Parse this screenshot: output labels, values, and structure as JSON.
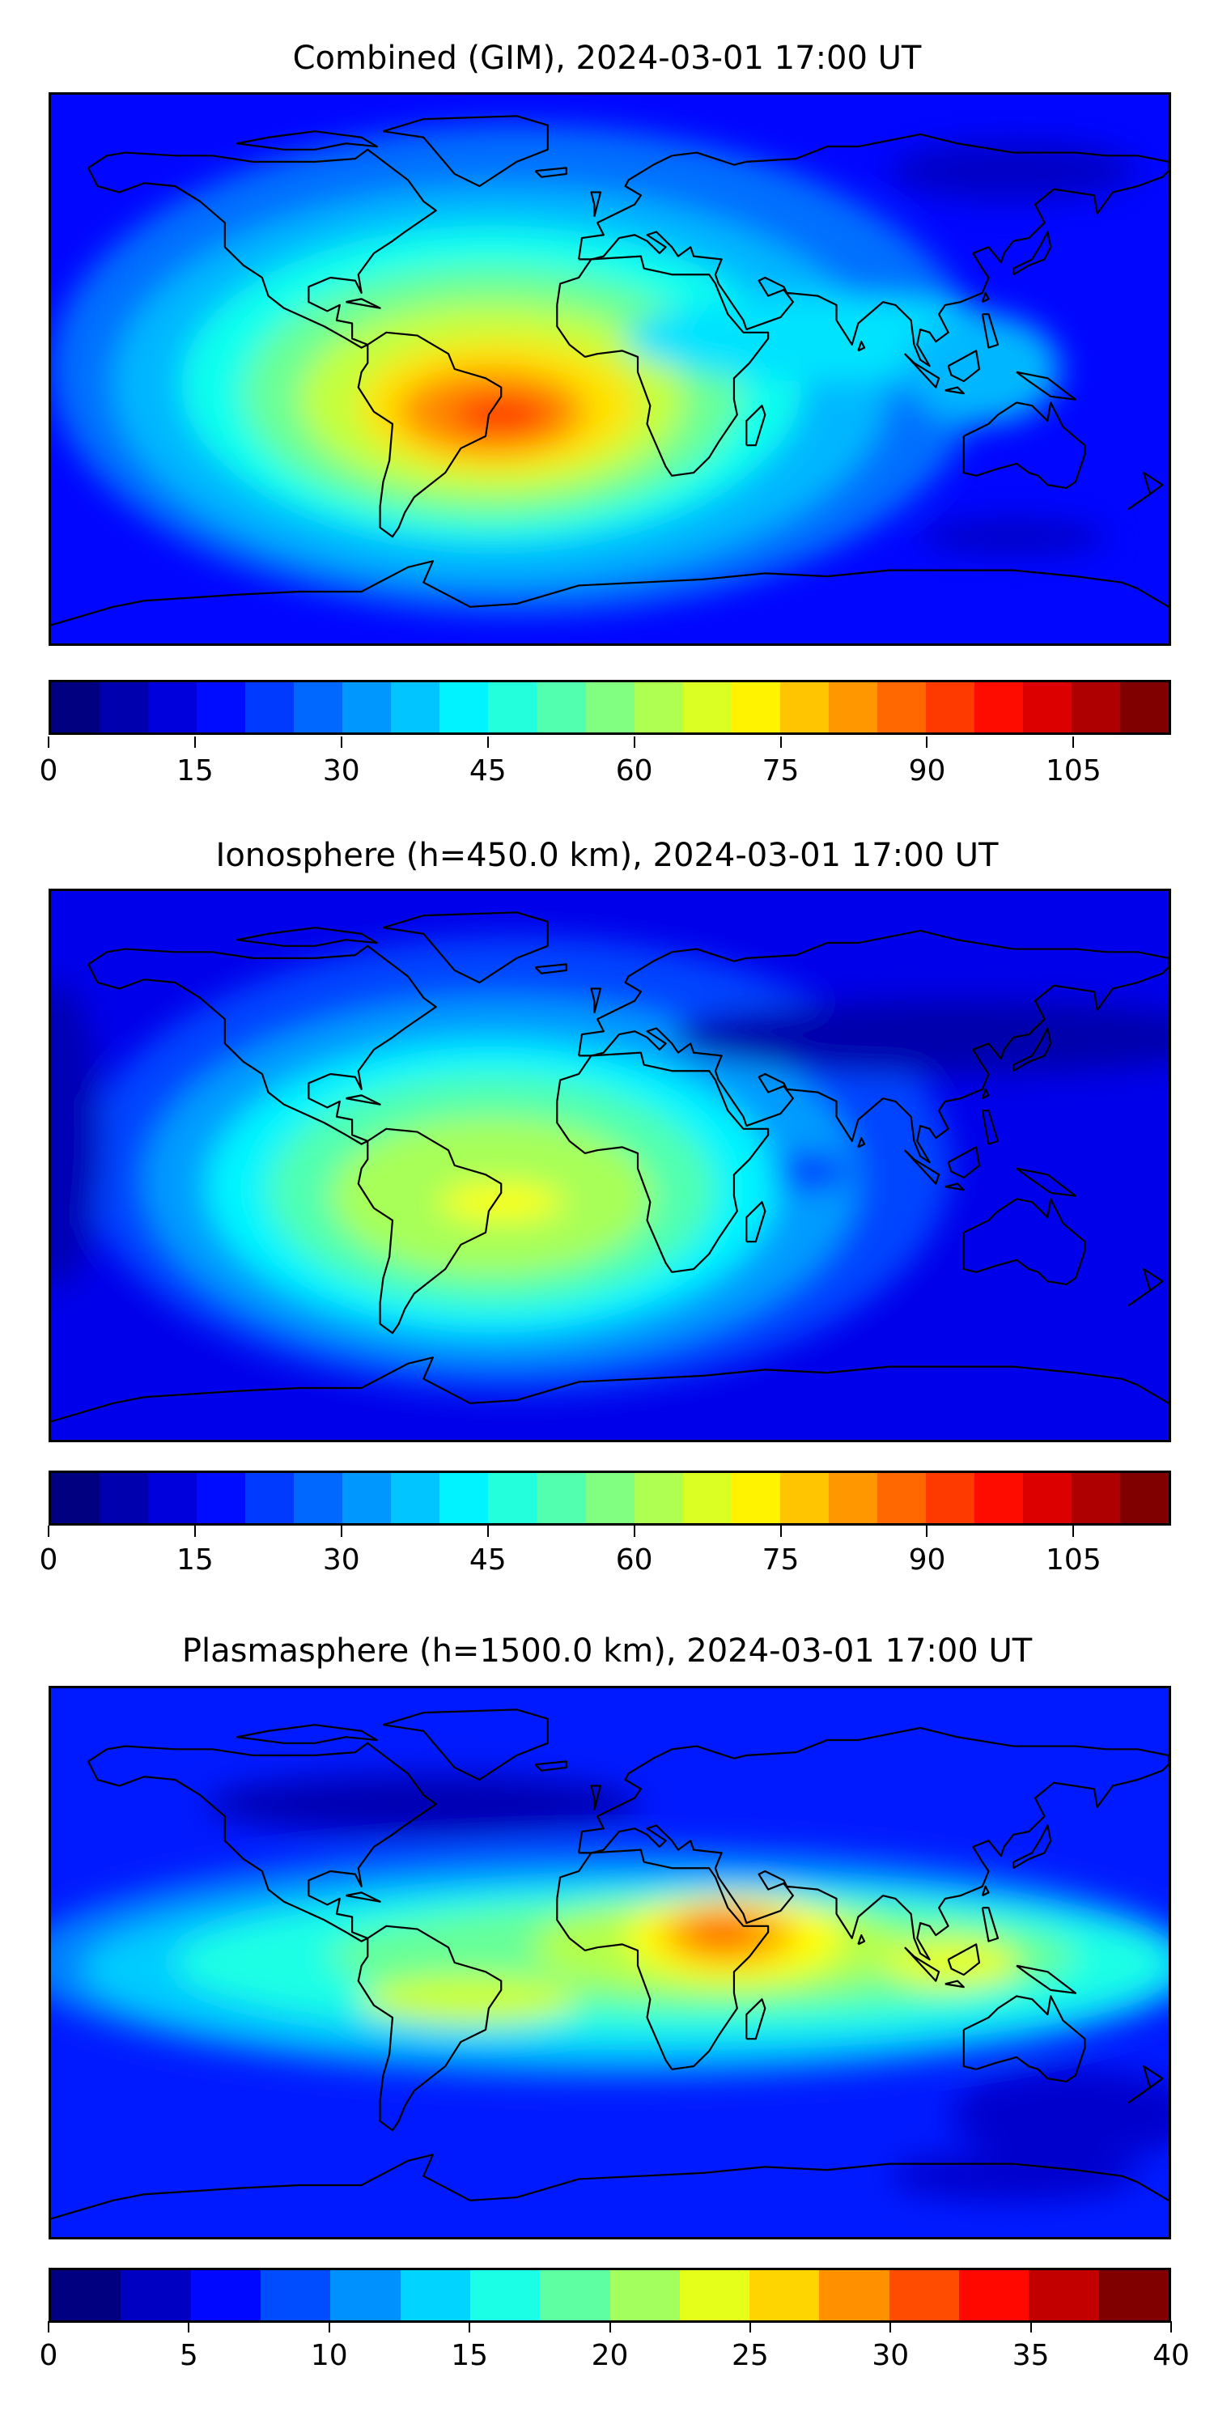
{
  "panels": [
    {
      "title": "Combined (GIM), 2024-03-01 17:00 UT",
      "colormap": "jet",
      "levels_min": 0,
      "levels_max": 115,
      "levels_step": 5,
      "ticks": [
        "0",
        "15",
        "30",
        "45",
        "60",
        "75",
        "90",
        "105"
      ],
      "tick_values": [
        0,
        15,
        30,
        45,
        60,
        75,
        90,
        105
      ]
    },
    {
      "title": "Ionosphere  (h=450.0 km), 2024-03-01 17:00 UT",
      "colormap": "jet",
      "levels_min": 0,
      "levels_max": 115,
      "levels_step": 5,
      "ticks": [
        "0",
        "15",
        "30",
        "45",
        "60",
        "75",
        "90",
        "105"
      ],
      "tick_values": [
        0,
        15,
        30,
        45,
        60,
        75,
        90,
        105
      ]
    },
    {
      "title": "Plasmasphere (h=1500.0 km), 2024-03-01 17:00 UT",
      "colormap": "jet",
      "levels_min": 0,
      "levels_max": 40,
      "levels_step": 2.5,
      "ticks": [
        "0",
        "5",
        "10",
        "15",
        "20",
        "25",
        "30",
        "35",
        "40"
      ],
      "tick_values": [
        0,
        5,
        10,
        15,
        20,
        25,
        30,
        35,
        40
      ]
    }
  ],
  "chart_data": [
    {
      "type": "heatmap",
      "title": "Combined (GIM), 2024-03-01 17:00 UT",
      "projection": "equirectangular",
      "xlim": [
        -180,
        180
      ],
      "ylim": [
        -90,
        90
      ],
      "colorbar_range": [
        0,
        115
      ],
      "peak_region": "South America / South Atlantic",
      "peak_value_approx": 95,
      "background_value_approx": 15
    },
    {
      "type": "heatmap",
      "title": "Ionosphere  (h=450.0 km), 2024-03-01 17:00 UT",
      "projection": "equirectangular",
      "xlim": [
        -180,
        180
      ],
      "ylim": [
        -90,
        90
      ],
      "colorbar_range": [
        0,
        115
      ],
      "peak_region": "South America / South Atlantic",
      "peak_value_approx": 72,
      "background_value_approx": 12
    },
    {
      "type": "heatmap",
      "title": "Plasmasphere (h=1500.0 km), 2024-03-01 17:00 UT",
      "projection": "equirectangular",
      "xlim": [
        -180,
        180
      ],
      "ylim": [
        -90,
        90
      ],
      "colorbar_range": [
        0,
        40
      ],
      "peak_region": "East Africa",
      "peak_value_approx": 31,
      "background_value_approx": 6
    }
  ]
}
